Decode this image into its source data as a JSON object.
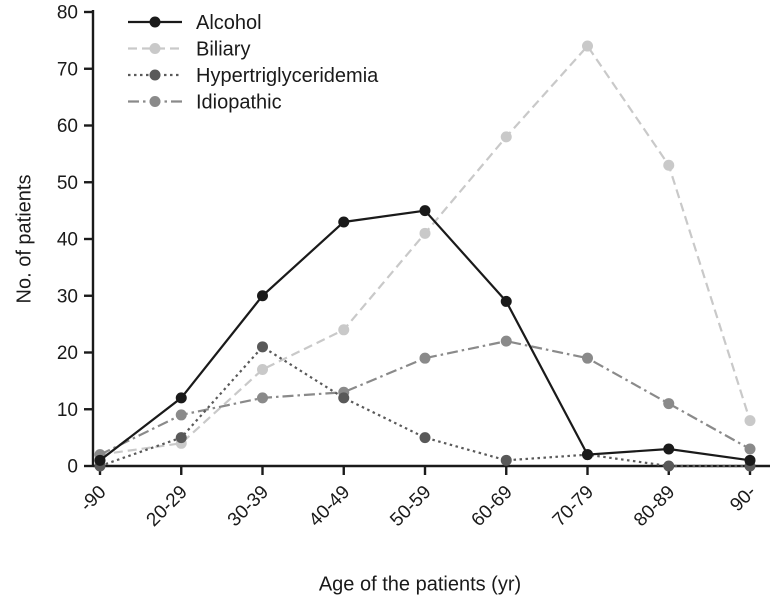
{
  "chart_data": {
    "type": "line",
    "title": "",
    "xlabel": "Age of the patients (yr)",
    "ylabel": "No. of patients",
    "ylim": [
      0,
      80
    ],
    "yticks": [
      0,
      10,
      20,
      30,
      40,
      50,
      60,
      70,
      80
    ],
    "categories": [
      "-90",
      "20-29",
      "30-39",
      "40-49",
      "50-59",
      "60-69",
      "70-79",
      "80-89",
      "90-"
    ],
    "grid": false,
    "legend_position": "top-left",
    "axis_color": "#1a1a1a",
    "series": [
      {
        "name": "Alcohol",
        "color": "#1a1a1a",
        "line_style": "solid",
        "values": [
          1,
          12,
          30,
          43,
          45,
          29,
          2,
          3,
          1
        ]
      },
      {
        "name": "Biliary",
        "color": "#c9c9c9",
        "line_style": "dashed",
        "values": [
          2,
          4,
          17,
          24,
          41,
          58,
          74,
          53,
          8
        ]
      },
      {
        "name": "Hypertriglyceridemia",
        "color": "#595959",
        "line_style": "dotted",
        "values": [
          0,
          5,
          21,
          12,
          5,
          1,
          2,
          0,
          0
        ]
      },
      {
        "name": "Idiopathic",
        "color": "#8a8a8a",
        "line_style": "dashdot",
        "values": [
          2,
          9,
          12,
          13,
          19,
          22,
          19,
          11,
          3
        ]
      }
    ]
  }
}
